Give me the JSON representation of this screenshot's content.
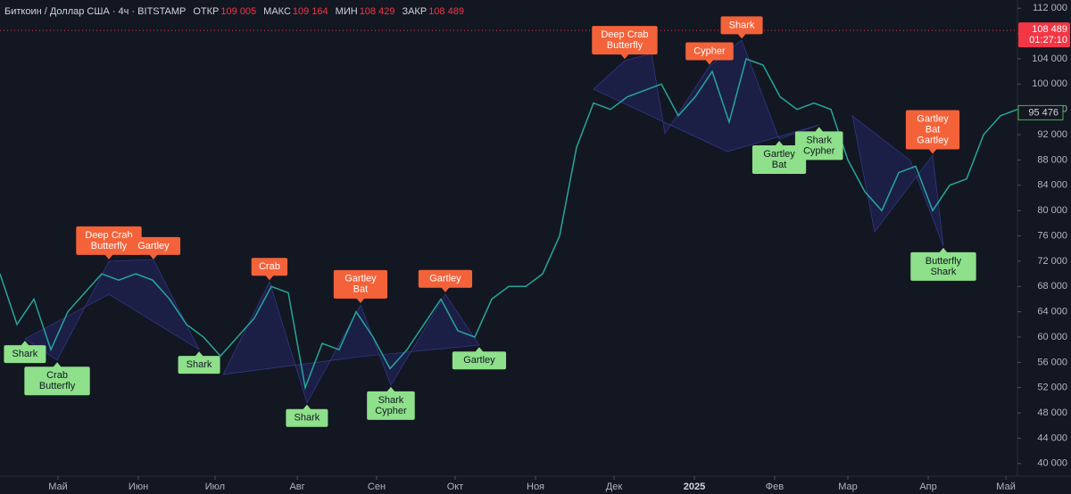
{
  "chart_data": {
    "type": "line",
    "title": "Биткоин / Доллар США · 4ч · BITSTAMP",
    "quote": {
      "labels": [
        "ОТКР",
        "МАКС",
        "МИН",
        "ЗАКР"
      ],
      "values": [
        109005,
        109164,
        108429,
        108489
      ],
      "value_labels": [
        "109 005",
        "109 164",
        "108 429",
        "108 489"
      ]
    },
    "color": "#26a69a",
    "values": [
      70000,
      62000,
      66000,
      58000,
      64000,
      67000,
      70000,
      69000,
      70000,
      69000,
      66000,
      62000,
      60000,
      57000,
      60000,
      63000,
      68000,
      67000,
      52000,
      59000,
      58000,
      64000,
      60000,
      55000,
      58000,
      62000,
      66000,
      61000,
      60000,
      66000,
      68000,
      68000,
      70000,
      76000,
      90000,
      97000,
      96000,
      98000,
      99000,
      100000,
      95000,
      98000,
      102000,
      94000,
      104000,
      103000,
      98000,
      96000,
      97000,
      96000,
      88000,
      83000,
      80000,
      86000,
      87000,
      80000,
      84000,
      85000,
      92000,
      95000,
      96000
    ],
    "xlim": [
      0,
      60
    ],
    "xticks": [
      {
        "value": 3.42,
        "label": "Май"
      },
      {
        "value": 8.16,
        "label": "Июн"
      },
      {
        "value": 12.68,
        "label": "Июл"
      },
      {
        "value": 17.53,
        "label": "Авг"
      },
      {
        "value": 22.21,
        "label": "Сен"
      },
      {
        "value": 26.84,
        "label": "Окт"
      },
      {
        "value": 31.58,
        "label": "Ноя"
      },
      {
        "value": 36.21,
        "label": "Дек"
      },
      {
        "value": 40.95,
        "label": "2025"
      },
      {
        "value": 45.68,
        "label": "Фев"
      },
      {
        "value": 50,
        "label": "Мар"
      },
      {
        "value": 54.74,
        "label": "Апр"
      },
      {
        "value": 59.32,
        "label": "Май"
      }
    ],
    "ylim": [
      38000,
      113300
    ],
    "yticks": [
      {
        "value": 40000,
        "label": "40 000"
      },
      {
        "value": 44000,
        "label": "44 000"
      },
      {
        "value": 48000,
        "label": "48 000"
      },
      {
        "value": 52000,
        "label": "52 000"
      },
      {
        "value": 56000,
        "label": "56 000"
      },
      {
        "value": 60000,
        "label": "60 000"
      },
      {
        "value": 64000,
        "label": "64 000"
      },
      {
        "value": 68000,
        "label": "68 000"
      },
      {
        "value": 72000,
        "label": "72 000"
      },
      {
        "value": 76000,
        "label": "76 000"
      },
      {
        "value": 80000,
        "label": "80 000"
      },
      {
        "value": 84000,
        "label": "84 000"
      },
      {
        "value": 88000,
        "label": "88 000"
      },
      {
        "value": 92000,
        "label": "92 000"
      },
      {
        "value": 96000,
        "label": "96 000"
      },
      {
        "value": 100000,
        "label": "100 000"
      },
      {
        "value": 104000,
        "label": "104 000"
      },
      {
        "value": 108000,
        "label": "108 000"
      },
      {
        "value": 112000,
        "label": "112 000"
      }
    ],
    "last_price": {
      "value": 108489,
      "label": "108 489",
      "countdown": "01:27:10",
      "color": "#f23645"
    },
    "marker_price": {
      "value": 95476,
      "label": "95 476",
      "color": "#4caf50"
    },
    "annotations": [
      {
        "lines": [
          "Deep Crab",
          "Butterfly"
        ],
        "x": 6.42,
        "y": 72000,
        "color": "#f4623a"
      },
      {
        "lines": [
          "Gartley"
        ],
        "x": 9.05,
        "y": 72000,
        "color": "#f4623a"
      },
      {
        "lines": [
          "Crab"
        ],
        "x": 15.89,
        "y": 68700,
        "color": "#f4623a"
      },
      {
        "lines": [
          "Gartley",
          "Bat"
        ],
        "x": 21.26,
        "y": 65100,
        "color": "#f4623a"
      },
      {
        "lines": [
          "Gartley"
        ],
        "x": 26.26,
        "y": 66800,
        "color": "#f4623a"
      },
      {
        "lines": [
          "Deep Crab",
          "Butterfly"
        ],
        "x": 36.84,
        "y": 103700,
        "color": "#f4623a"
      },
      {
        "lines": [
          "Cypher"
        ],
        "x": 41.84,
        "y": 102800,
        "color": "#f4623a"
      },
      {
        "lines": [
          "Shark"
        ],
        "x": 43.74,
        "y": 106900,
        "color": "#f4623a"
      },
      {
        "lines": [
          "Gartley",
          "Bat",
          "Gartley"
        ],
        "x": 55,
        "y": 88700,
        "color": "#f4623a"
      },
      {
        "lines": [
          "Shark"
        ],
        "x": 1.47,
        "y": 59700,
        "color": "#8ee08a"
      },
      {
        "lines": [
          "Crab",
          "Butterfly"
        ],
        "x": 3.37,
        "y": 56300,
        "color": "#8ee08a"
      },
      {
        "lines": [
          "Shark"
        ],
        "x": 11.74,
        "y": 58000,
        "color": "#8ee08a"
      },
      {
        "lines": [
          "Shark"
        ],
        "x": 18.1,
        "y": 49600,
        "color": "#8ee08a"
      },
      {
        "lines": [
          "Shark",
          "Cypher"
        ],
        "x": 23.05,
        "y": 52400,
        "color": "#8ee08a"
      },
      {
        "lines": [
          "Gartley"
        ],
        "x": 28.26,
        "y": 58700,
        "color": "#8ee08a"
      },
      {
        "lines": [
          "Gartley",
          "Bat"
        ],
        "x": 45.95,
        "y": 91300,
        "color": "#8ee08a"
      },
      {
        "lines": [
          "Shark",
          "Cypher"
        ],
        "x": 48.3,
        "y": 93500,
        "color": "#8ee08a"
      },
      {
        "lines": [
          "Butterfly",
          "Shark"
        ],
        "x": 55.63,
        "y": 74400,
        "color": "#8ee08a"
      }
    ]
  }
}
